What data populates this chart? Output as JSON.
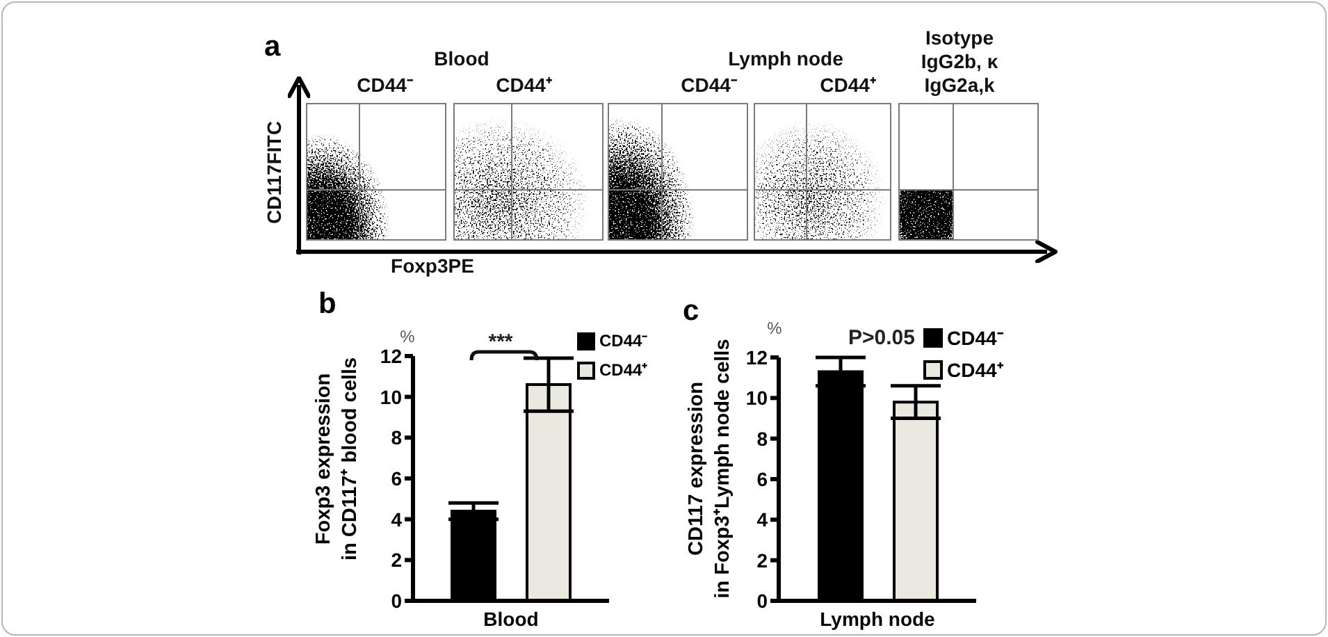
{
  "chart_data": [
    {
      "type": "other",
      "title": "a",
      "xlabel": "Foxp3PE",
      "ylabel": "CD117FITC",
      "categories": [
        "CD44⁻",
        "CD44⁺",
        "CD44⁻",
        "CD44⁺",
        "Isotype\nIgG2b, κ\nIgG2a,k"
      ],
      "annotations": [
        "Blood",
        "Lymph node"
      ]
    },
    {
      "type": "bar",
      "title": "b",
      "ylabel": "Foxp3 expression\nin CD117⁺ blood cells",
      "categories": [
        "Blood"
      ],
      "series": [
        {
          "name": "CD44⁻",
          "color": "#000000",
          "values": [
            4.4
          ],
          "errors": [
            0.4
          ]
        },
        {
          "name": "CD44⁺",
          "color": "#ebe9df",
          "values": [
            10.6
          ],
          "errors": [
            1.3
          ]
        }
      ],
      "ylim": [
        0,
        12
      ],
      "yticks": [
        0,
        2,
        4,
        6,
        8,
        10,
        12
      ],
      "legend": "top right",
      "annotations": [
        "%",
        "***"
      ]
    },
    {
      "type": "bar",
      "title": "c",
      "ylabel": "CD117 expression\nin Foxp3⁺Lymph node cells",
      "categories": [
        "Lymph node"
      ],
      "series": [
        {
          "name": "CD44⁻",
          "color": "#000000",
          "values": [
            11.3
          ],
          "errors": [
            0.7
          ]
        },
        {
          "name": "CD44⁺",
          "color": "#ebe9df",
          "values": [
            9.8
          ],
          "errors": [
            0.8
          ]
        }
      ],
      "ylim": [
        0,
        12
      ],
      "yticks": [
        0,
        2,
        4,
        6,
        8,
        10,
        12
      ],
      "legend": "top right",
      "annotations": [
        "%",
        "P>0.05"
      ]
    }
  ]
}
